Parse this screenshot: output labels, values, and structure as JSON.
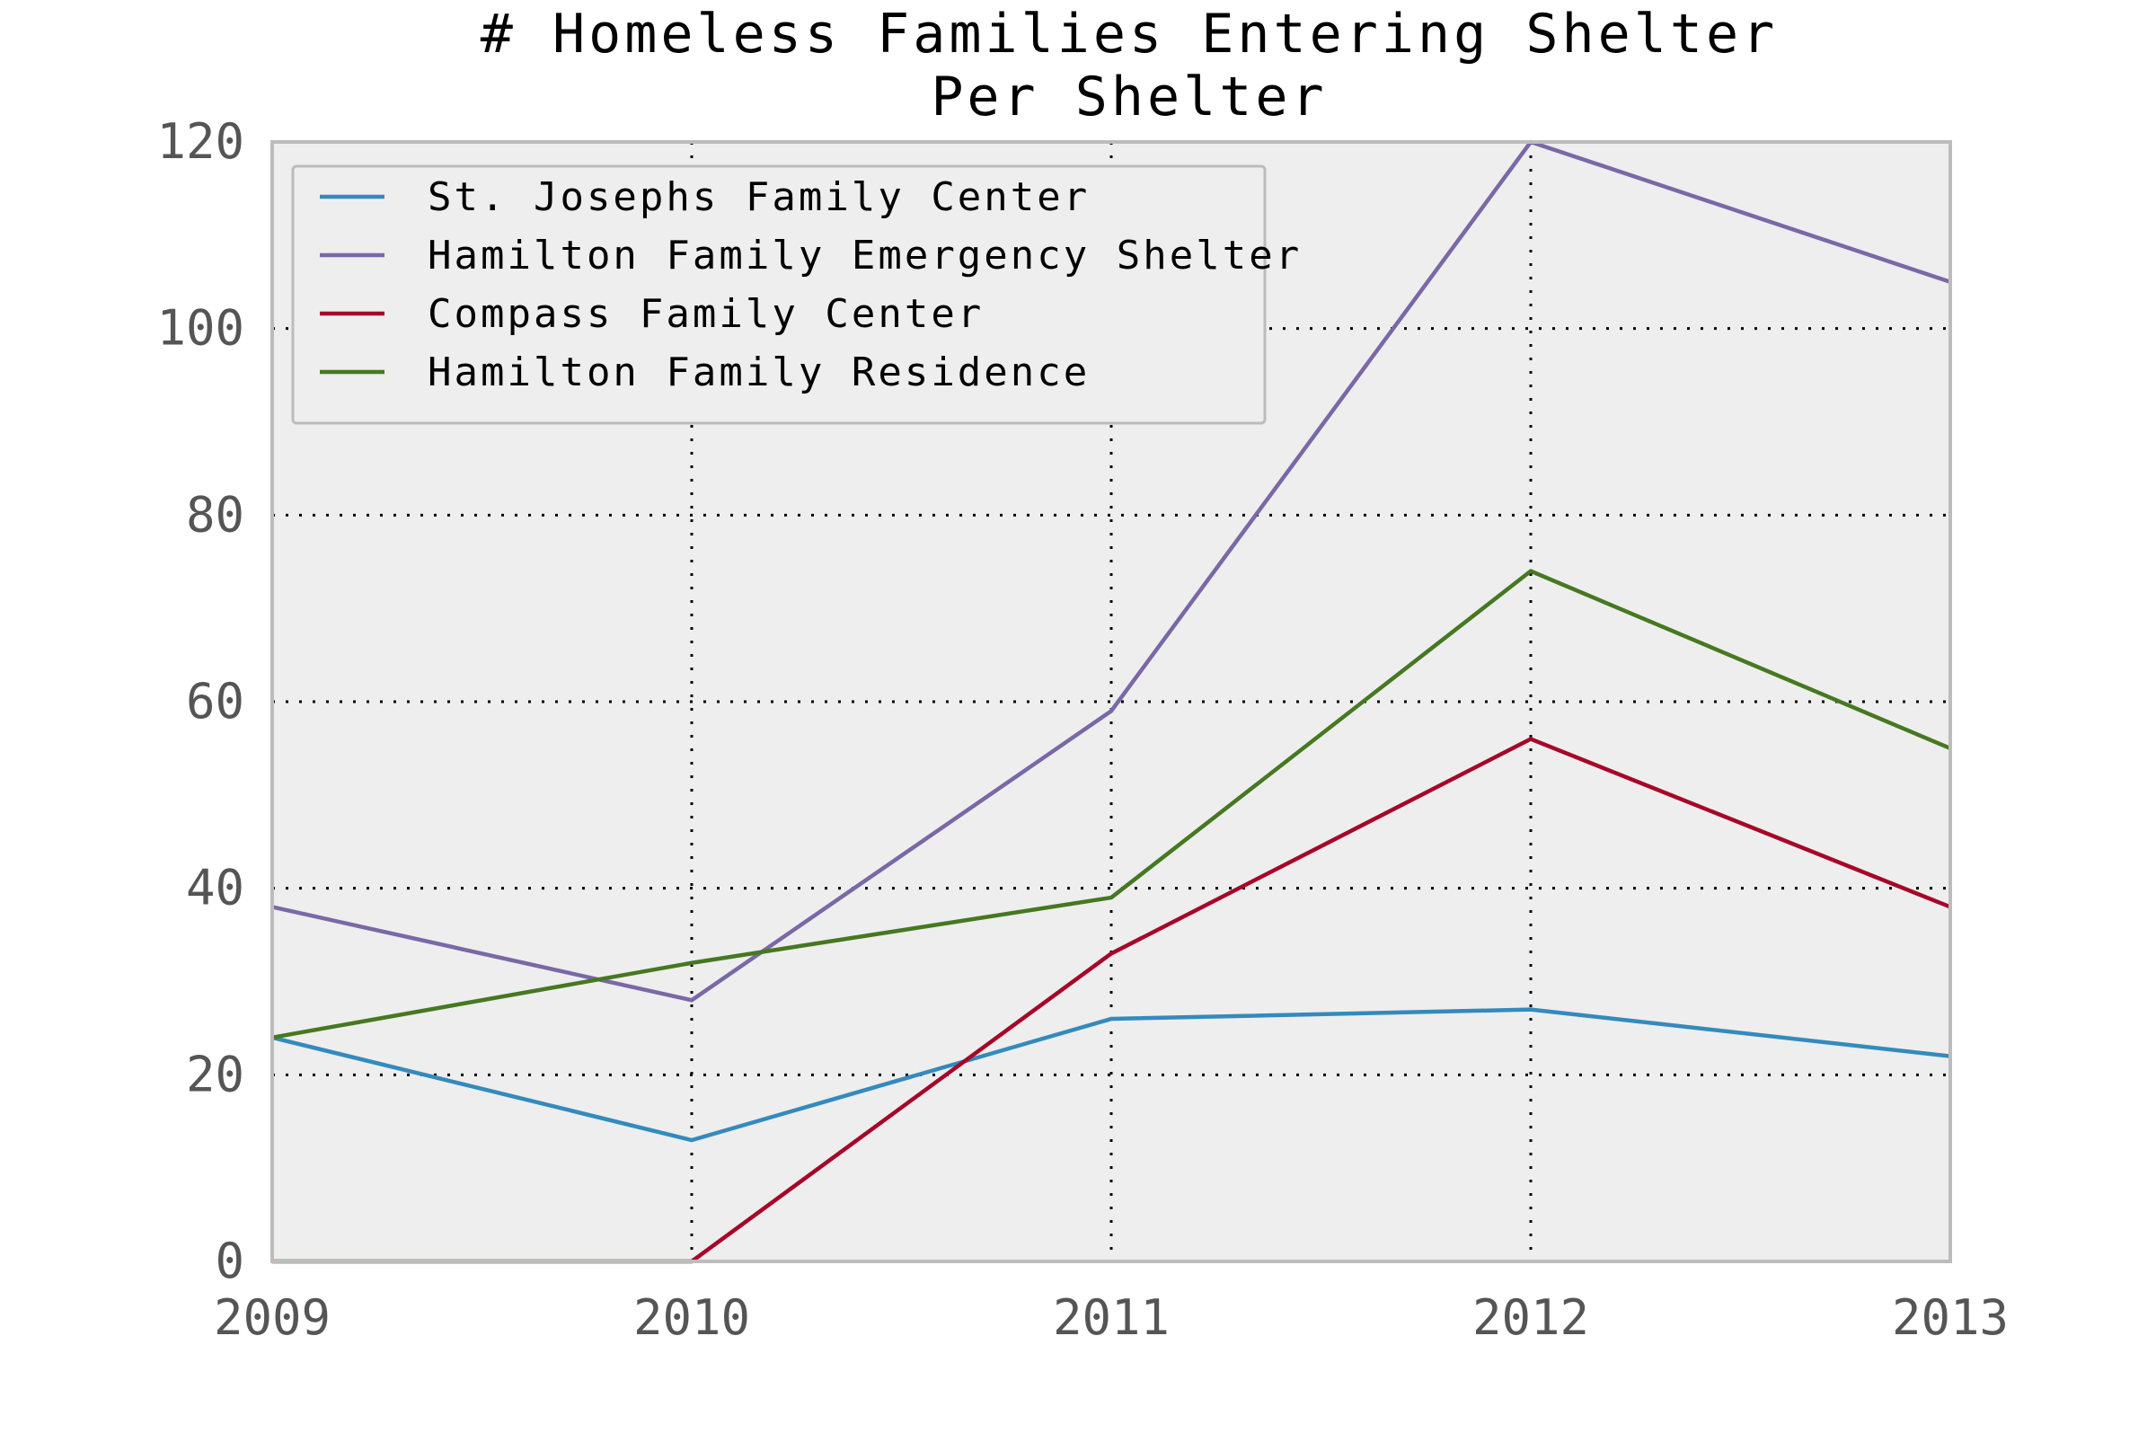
{
  "chart_data": {
    "type": "line",
    "title": "# Homeless Families Entering Shelter\nPer Shelter",
    "title_lines": [
      "# Homeless Families Entering Shelter",
      "Per Shelter"
    ],
    "xlabel": "",
    "ylabel": "",
    "x": [
      2009,
      2010,
      2011,
      2012,
      2013
    ],
    "x_tick_labels": [
      "2009",
      "2010",
      "2011",
      "2012",
      "2013"
    ],
    "xlim": [
      2009,
      2013
    ],
    "ylim": [
      0,
      120
    ],
    "y_ticks": [
      0,
      20,
      40,
      60,
      80,
      100,
      120
    ],
    "y_tick_labels": [
      "0",
      "20",
      "40",
      "60",
      "80",
      "100",
      "120"
    ],
    "grid": true,
    "legend_position": "top-left",
    "series": [
      {
        "name": "St. Josephs Family Center",
        "color": "#348abd",
        "values": [
          24,
          13,
          26,
          27,
          22
        ]
      },
      {
        "name": "Hamilton Family Emergency Shelter",
        "color": "#7a68a6",
        "values": [
          38,
          28,
          59,
          120,
          105
        ]
      },
      {
        "name": "Compass Family Center",
        "color": "#a60628",
        "values": [
          0,
          0,
          33,
          56,
          38
        ]
      },
      {
        "name": "Hamilton Family Residence",
        "color": "#467821",
        "values": [
          24,
          32,
          39,
          74,
          55
        ]
      }
    ],
    "colors": {
      "plot_background": "#eeeeee",
      "plot_border": "#bcbcbc",
      "grid": "#000000",
      "tick_label": "#555555"
    }
  }
}
